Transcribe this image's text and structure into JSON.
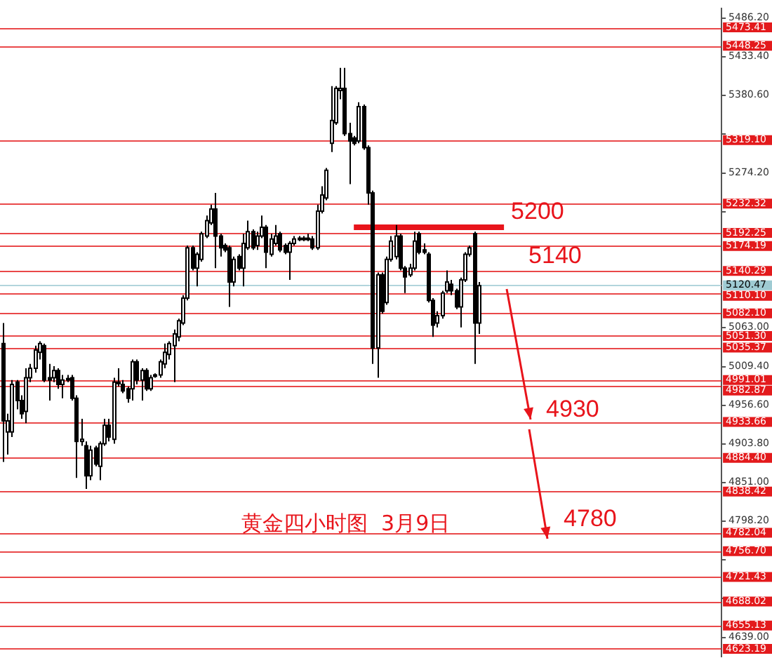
{
  "chart_data": {
    "type": "candlestick",
    "annotations": [
      {
        "text": "5200",
        "y": 5200
      },
      {
        "text": "5140",
        "y": 5140
      },
      {
        "text": "4930",
        "y": 4930
      },
      {
        "text": "4780",
        "y": 4780
      },
      "黄金四小时图  3月9日"
    ],
    "categories": [
      null,
      null,
      null,
      null,
      null,
      null,
      null,
      null,
      null,
      null,
      null,
      null,
      null,
      null,
      null,
      null,
      null,
      null,
      null,
      null,
      null,
      null,
      null,
      null,
      null,
      null,
      null,
      null,
      null,
      null,
      null,
      null,
      null,
      null,
      null,
      null,
      null,
      null,
      null,
      null,
      null,
      null,
      null,
      null,
      null,
      null,
      null,
      null,
      null,
      null,
      null,
      null,
      null,
      null,
      null,
      null,
      null,
      null,
      null,
      null,
      null,
      null,
      null,
      null,
      null,
      null,
      null,
      null,
      null,
      null,
      null,
      null,
      null,
      null,
      null,
      null,
      null,
      null,
      null,
      null,
      null,
      null,
      null,
      null,
      null,
      null,
      null,
      null,
      null,
      null,
      null,
      null,
      null,
      null,
      null,
      null,
      null,
      null,
      null,
      null,
      null,
      null,
      null,
      null,
      null,
      null,
      null,
      null,
      null,
      null,
      null,
      null,
      null,
      null,
      null,
      null,
      null,
      null,
      null,
      null,
      null,
      null,
      null,
      null,
      null,
      null,
      null,
      null,
      null,
      null,
      null,
      null,
      null,
      null,
      null,
      null,
      null,
      null,
      null,
      null,
      null,
      null,
      null,
      null,
      null,
      null,
      null,
      null,
      null,
      null,
      null,
      null,
      null,
      null,
      null,
      null
    ],
    "ohlc": [
      [
        5041,
        5069,
        4879,
        4935
      ],
      [
        4920,
        4945,
        4889,
        4935
      ],
      [
        4920,
        4991,
        4913,
        4985
      ],
      [
        4988,
        4991,
        4951,
        4963
      ],
      [
        4963,
        4970,
        4938,
        4945
      ],
      [
        4948,
        5007,
        4932,
        4994
      ],
      [
        4994,
        5013,
        4988,
        5007
      ],
      [
        5007,
        5038,
        5001,
        5032
      ],
      [
        5029,
        5044,
        5019,
        5041
      ],
      [
        5038,
        5041,
        4988,
        4991
      ],
      [
        4994,
        5013,
        4963,
        4991
      ],
      [
        4994,
        5010,
        4988,
        5004
      ],
      [
        5004,
        5007,
        4979,
        4985
      ],
      [
        4985,
        4998,
        4966,
        4991
      ],
      [
        4993,
        4998,
        4988,
        4992
      ],
      [
        4994,
        4998,
        4963,
        4966
      ],
      [
        4966,
        4970,
        4857,
        4907
      ],
      [
        4907,
        4938,
        4901,
        4910
      ],
      [
        4901,
        4907,
        4842,
        4860
      ],
      [
        4860,
        4901,
        4854,
        4895
      ],
      [
        4898,
        4901,
        4873,
        4876
      ],
      [
        4873,
        4907,
        4854,
        4904
      ],
      [
        4904,
        4938,
        4901,
        4929
      ],
      [
        4929,
        4938,
        4907,
        4913
      ],
      [
        4910,
        4994,
        4904,
        4988
      ],
      [
        4988,
        5007,
        4982,
        4987
      ],
      [
        4985,
        4991,
        4973,
        4976
      ],
      [
        4979,
        4982,
        4960,
        4966
      ],
      [
        4979,
        5019,
        4963,
        5016
      ],
      [
        5016,
        5019,
        4985,
        4991
      ],
      [
        4991,
        5007,
        4963,
        5004
      ],
      [
        5004,
        5007,
        4976,
        4979
      ],
      [
        4979,
        4998,
        4976,
        4994
      ],
      [
        4998,
        5000,
        4994,
        4997
      ],
      [
        4998,
        5019,
        4994,
        5016
      ],
      [
        5013,
        5041,
        5007,
        5029
      ],
      [
        5026,
        5044,
        5019,
        5041
      ],
      [
        5038,
        5060,
        4988,
        5054
      ],
      [
        5050,
        5075,
        5044,
        5072
      ],
      [
        5069,
        5107,
        5066,
        5103
      ],
      [
        5103,
        5175,
        5100,
        5172
      ],
      [
        5172,
        5175,
        5141,
        5144
      ],
      [
        5144,
        5166,
        5119,
        5163
      ],
      [
        5156,
        5194,
        5153,
        5191
      ],
      [
        5188,
        5216,
        5185,
        5209
      ],
      [
        5206,
        5231,
        5203,
        5225
      ],
      [
        5225,
        5247,
        5144,
        5188
      ],
      [
        5188,
        5191,
        5160,
        5172
      ],
      [
        5175,
        5178,
        5166,
        5169
      ],
      [
        5172,
        5175,
        5091,
        5125
      ],
      [
        5125,
        5160,
        5119,
        5156
      ],
      [
        5160,
        5163,
        5141,
        5144
      ],
      [
        5144,
        5191,
        5119,
        5178
      ],
      [
        5172,
        5209,
        5169,
        5194
      ],
      [
        5194,
        5197,
        5169,
        5172
      ],
      [
        5175,
        5194,
        5169,
        5188
      ],
      [
        5188,
        5216,
        5185,
        5200
      ],
      [
        5200,
        5203,
        5144,
        5166
      ],
      [
        5163,
        5191,
        5160,
        5184
      ],
      [
        5178,
        5203,
        5175,
        5188
      ],
      [
        5191,
        5194,
        5166,
        5169
      ],
      [
        5175,
        5178,
        5163,
        5166
      ],
      [
        5166,
        5181,
        5128,
        5178
      ],
      [
        5178,
        5188,
        5175,
        5184
      ],
      [
        5185,
        5188,
        5181,
        5184
      ],
      [
        5184,
        5188,
        5181,
        5185
      ],
      [
        5185,
        5191,
        5181,
        5184
      ],
      [
        5184,
        5188,
        5169,
        5172
      ],
      [
        5172,
        5231,
        5169,
        5222
      ],
      [
        5222,
        5256,
        5219,
        5244
      ],
      [
        5240,
        5281,
        5237,
        5278
      ],
      [
        5315,
        5393,
        5303,
        5346
      ],
      [
        5343,
        5393,
        5340,
        5390
      ],
      [
        5387,
        5418,
        5375,
        5390
      ],
      [
        5390,
        5418,
        5325,
        5328
      ],
      [
        5328,
        5343,
        5259,
        5318
      ],
      [
        5322,
        5325,
        5312,
        5315
      ],
      [
        5318,
        5371,
        5315,
        5365
      ],
      [
        5365,
        5368,
        5306,
        5309
      ],
      [
        5309,
        5312,
        5231,
        5247
      ],
      [
        5247,
        5250,
        5013,
        5035
      ],
      [
        5035,
        5138,
        4994,
        5135
      ],
      [
        5135,
        5138,
        5082,
        5085
      ],
      [
        5097,
        5160,
        5094,
        5156
      ],
      [
        5156,
        5188,
        5153,
        5181
      ],
      [
        5160,
        5203,
        5156,
        5188
      ],
      [
        5188,
        5191,
        5141,
        5144
      ],
      [
        5144,
        5147,
        5110,
        5132
      ],
      [
        5135,
        5150,
        5132,
        5144
      ],
      [
        5144,
        5194,
        5141,
        5181
      ],
      [
        5191,
        5194,
        5163,
        5166
      ],
      [
        5169,
        5178,
        5163,
        5166
      ],
      [
        5163,
        5166,
        5097,
        5100
      ],
      [
        5100,
        5103,
        5050,
        5066
      ],
      [
        5069,
        5085,
        5063,
        5079
      ],
      [
        5079,
        5113,
        5075,
        5110
      ],
      [
        5113,
        5141,
        5110,
        5125
      ],
      [
        5122,
        5128,
        5107,
        5113
      ],
      [
        5113,
        5116,
        5088,
        5091
      ],
      [
        5091,
        5131,
        5063,
        5128
      ],
      [
        5128,
        5166,
        5125,
        5163
      ],
      [
        5163,
        5175,
        5160,
        5172
      ],
      [
        5191,
        5194,
        5013,
        5069
      ],
      [
        5069,
        5125,
        5054,
        5120
      ],
      null,
      null,
      null,
      null,
      null,
      null,
      null,
      null,
      null,
      null,
      null,
      null,
      null,
      null,
      null,
      null,
      null,
      null,
      null,
      null,
      null,
      null,
      null,
      null,
      null,
      null,
      null,
      null,
      null,
      null,
      null,
      null,
      null,
      null,
      null,
      null,
      null,
      null,
      null,
      null,
      null,
      null,
      null,
      null,
      null,
      null,
      null,
      null,
      null,
      null,
      null,
      null
    ],
    "ylim": [
      4613,
      5499
    ],
    "yticks": [
      {
        "value": 5486.2,
        "label": "5486.20"
      },
      {
        "value": 5433.4,
        "label": "5433.40"
      },
      {
        "value": 5380.6,
        "label": "5380.60"
      },
      {
        "value": 5327.8,
        "label": null
      },
      {
        "value": 5274.2,
        "label": "5274.20"
      },
      {
        "value": 5221.4,
        "label": null
      },
      {
        "value": 5063,
        "label": "5063.00"
      },
      {
        "value": 5009.4,
        "label": "5009.40"
      },
      {
        "value": 4956.6,
        "label": "4956.60"
      },
      {
        "value": 4903.8,
        "label": "4903.80"
      },
      {
        "value": 4851,
        "label": "4851.00"
      },
      {
        "value": 4798.2,
        "label": "4798.20"
      },
      {
        "value": 4744.6,
        "label": null
      },
      {
        "value": 4691.8,
        "label": null
      },
      {
        "value": 4639,
        "label": "4639.00"
      }
    ],
    "ref_lines": [
      {
        "axis": "y",
        "value": 5473.41,
        "label": "5473.41",
        "color": "#e31a1c"
      },
      {
        "axis": "y",
        "value": 5448.25,
        "label": "5448.25",
        "color": "#e31a1c"
      },
      {
        "axis": "y",
        "value": 5319.1,
        "label": "5319.10",
        "color": "#e31a1c"
      },
      {
        "axis": "y",
        "value": 5232.32,
        "label": "5232.32",
        "color": "#e31a1c"
      },
      {
        "axis": "y",
        "value": 5192.25,
        "label": "5192.25",
        "color": "#e31a1c"
      },
      {
        "axis": "y",
        "value": 5174.19,
        "label": "5174.19",
        "color": "#e31a1c"
      },
      {
        "axis": "y",
        "value": 5140.29,
        "label": "5140.29",
        "color": "#e31a1c"
      },
      {
        "axis": "y",
        "value": 5120.47,
        "label": "5120.47",
        "color": "#9fcbd3"
      },
      {
        "axis": "y",
        "value": 5110.1,
        "label": "5110.10",
        "color": "#e31a1c"
      },
      {
        "axis": "y",
        "value": 5082.1,
        "label": "5082.10",
        "color": "#e31a1c"
      },
      {
        "axis": "y",
        "value": 5051.3,
        "label": "5051.30",
        "color": "#e31a1c"
      },
      {
        "axis": "y",
        "value": 5035.37,
        "label": "5035.37",
        "color": "#e31a1c"
      },
      {
        "axis": "y",
        "value": 4991.01,
        "label": "4991.01",
        "color": "#e31a1c"
      },
      {
        "axis": "y",
        "value": 4982.87,
        "label": "4982.87",
        "color": "#e31a1c"
      },
      {
        "axis": "y",
        "value": 4933.66,
        "label": "4933.66",
        "color": "#e31a1c"
      },
      {
        "axis": "y",
        "value": 4884.4,
        "label": "4884.40",
        "color": "#e31a1c"
      },
      {
        "axis": "y",
        "value": 4838.42,
        "label": "4838.42",
        "color": "#e31a1c"
      },
      {
        "axis": "y",
        "value": 4782.04,
        "label": "4782.04",
        "color": "#e31a1c"
      },
      {
        "axis": "y",
        "value": 4756.7,
        "label": "4756.70",
        "color": "#e31a1c"
      },
      {
        "axis": "y",
        "value": 4721.43,
        "label": "4721.43",
        "color": "#e31a1c"
      },
      {
        "axis": "y",
        "value": 4688.02,
        "label": "4688.02",
        "color": "#e31a1c"
      },
      {
        "axis": "y",
        "value": 4655.13,
        "label": "4655.13",
        "color": "#e31a1c"
      },
      {
        "axis": "y",
        "value": 4623.19,
        "label": "4623.19",
        "color": "#e31a1c"
      }
    ],
    "tick_labels": "y",
    "grid": false,
    "legend": false
  }
}
